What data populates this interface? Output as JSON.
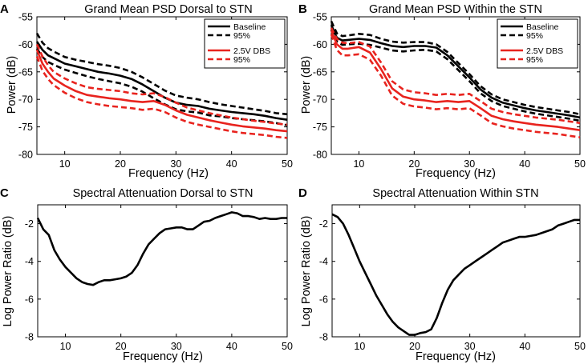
{
  "chart_data": [
    {
      "type": "line",
      "panel_label": "A",
      "title": "Grand Mean PSD Dorsal to STN",
      "xlabel": "Frequency (Hz)",
      "ylabel": "Power (dB)",
      "xlim": [
        5,
        50
      ],
      "ylim": [
        -80,
        -55
      ],
      "xticks": [
        10,
        20,
        30,
        40,
        50
      ],
      "yticks": [
        -80,
        -75,
        -70,
        -65,
        -60,
        -55
      ],
      "legend": {
        "position": "top-right",
        "entries": [
          {
            "label": "Baseline",
            "color": "#000000",
            "style": "solid"
          },
          {
            "label": "95%",
            "color": "#000000",
            "style": "dashed"
          },
          {
            "label": "2.5V DBS",
            "color": "#e8231e",
            "style": "solid"
          },
          {
            "label": "95%",
            "color": "#e8231e",
            "style": "dashed"
          }
        ]
      },
      "series": [
        {
          "name": "Baseline",
          "color": "#000000",
          "style": "solid",
          "x": [
            5,
            6,
            7,
            8,
            10,
            12,
            14,
            16,
            18,
            20,
            22,
            24,
            26,
            28,
            30,
            32,
            34,
            36,
            38,
            40,
            42,
            44,
            46,
            48,
            50
          ],
          "y": [
            -59.5,
            -61,
            -62,
            -62.5,
            -63.5,
            -64,
            -64.5,
            -65,
            -65.3,
            -65.7,
            -66.3,
            -67.3,
            -68.5,
            -69.7,
            -70.6,
            -71,
            -71.2,
            -71.7,
            -72,
            -72.3,
            -72.5,
            -72.7,
            -73,
            -73.4,
            -73.7
          ]
        },
        {
          "name": "Baseline 95% upper",
          "color": "#000000",
          "style": "dashed",
          "x": [
            5,
            6,
            7,
            8,
            10,
            12,
            14,
            16,
            18,
            20,
            22,
            24,
            26,
            28,
            30,
            32,
            34,
            36,
            38,
            40,
            42,
            44,
            46,
            48,
            50
          ],
          "y": [
            -58,
            -59.7,
            -60.7,
            -61.3,
            -62.3,
            -62.8,
            -63.2,
            -63.6,
            -63.9,
            -64.3,
            -65,
            -66,
            -67.2,
            -68.4,
            -69.3,
            -69.7,
            -70,
            -70.5,
            -70.9,
            -71.2,
            -71.5,
            -71.8,
            -72.1,
            -72.5,
            -72.7
          ]
        },
        {
          "name": "Baseline 95% lower",
          "color": "#000000",
          "style": "dashed",
          "x": [
            5,
            6,
            7,
            8,
            10,
            12,
            14,
            16,
            18,
            20,
            22,
            24,
            26,
            28,
            30,
            32,
            34,
            36,
            38,
            40,
            42,
            44,
            46,
            48,
            50
          ],
          "y": [
            -60.8,
            -62.3,
            -63.2,
            -63.7,
            -64.6,
            -65.2,
            -65.8,
            -66.3,
            -66.7,
            -67.1,
            -67.7,
            -68.6,
            -69.8,
            -70.9,
            -71.8,
            -72.2,
            -72.4,
            -72.9,
            -73.1,
            -73.4,
            -73.6,
            -73.8,
            -74,
            -74.3,
            -74.7
          ]
        },
        {
          "name": "2.5V DBS",
          "color": "#e8231e",
          "style": "solid",
          "x": [
            5,
            6,
            7,
            8,
            10,
            12,
            14,
            16,
            18,
            20,
            22,
            24,
            26,
            28,
            30,
            32,
            34,
            36,
            38,
            40,
            42,
            44,
            46,
            48,
            50
          ],
          "y": [
            -61,
            -63.5,
            -65,
            -66.2,
            -67.5,
            -68.5,
            -69.2,
            -69.5,
            -69.8,
            -70,
            -70.3,
            -70.5,
            -70.3,
            -71,
            -72,
            -72.8,
            -73.3,
            -73.8,
            -74.2,
            -74.6,
            -74.9,
            -75.1,
            -75.3,
            -75.6,
            -75.8
          ]
        },
        {
          "name": "2.5V DBS 95% upper",
          "color": "#e8231e",
          "style": "dashed",
          "x": [
            5,
            6,
            7,
            8,
            10,
            12,
            14,
            16,
            18,
            20,
            22,
            24,
            26,
            28,
            30,
            32,
            34,
            36,
            38,
            40,
            42,
            44,
            46,
            48,
            50
          ],
          "y": [
            -60,
            -62.2,
            -63.8,
            -65,
            -66.2,
            -67.1,
            -67.8,
            -68.1,
            -68.3,
            -68.5,
            -68.9,
            -69.1,
            -68.9,
            -69.6,
            -70.6,
            -71.5,
            -72,
            -72.5,
            -72.9,
            -73.3,
            -73.6,
            -73.9,
            -74.1,
            -74.4,
            -74.6
          ]
        },
        {
          "name": "2.5V DBS 95% lower",
          "color": "#e8231e",
          "style": "dashed",
          "x": [
            5,
            6,
            7,
            8,
            10,
            12,
            14,
            16,
            18,
            20,
            22,
            24,
            26,
            28,
            30,
            32,
            34,
            36,
            38,
            40,
            42,
            44,
            46,
            48,
            50
          ],
          "y": [
            -62.2,
            -64.8,
            -66.3,
            -67.4,
            -68.8,
            -69.8,
            -70.5,
            -70.9,
            -71.2,
            -71.4,
            -71.6,
            -71.9,
            -71.7,
            -72.3,
            -73.3,
            -74.1,
            -74.6,
            -75,
            -75.4,
            -75.8,
            -76.1,
            -76.3,
            -76.5,
            -76.8,
            -77
          ]
        }
      ]
    },
    {
      "type": "line",
      "panel_label": "B",
      "title": "Grand Mean PSD Within the STN",
      "xlabel": "Frequency (Hz)",
      "ylabel": "Power (dB)",
      "xlim": [
        5,
        50
      ],
      "ylim": [
        -80,
        -55
      ],
      "xticks": [
        10,
        20,
        30,
        40,
        50
      ],
      "yticks": [
        -80,
        -75,
        -70,
        -65,
        -60,
        -55
      ],
      "legend": {
        "position": "top-right",
        "entries": [
          {
            "label": "Baseline",
            "color": "#000000",
            "style": "solid"
          },
          {
            "label": "95%",
            "color": "#000000",
            "style": "dashed"
          },
          {
            "label": "2.5V DBS",
            "color": "#e8231e",
            "style": "solid"
          },
          {
            "label": "95%",
            "color": "#e8231e",
            "style": "dashed"
          }
        ]
      },
      "series": [
        {
          "name": "Baseline",
          "color": "#000000",
          "style": "solid",
          "x": [
            5,
            6,
            7,
            8,
            10,
            12,
            14,
            16,
            18,
            20,
            22,
            24,
            26,
            28,
            30,
            32,
            34,
            36,
            38,
            40,
            42,
            44,
            46,
            48,
            50
          ],
          "y": [
            -56.5,
            -58.8,
            -59.3,
            -59.2,
            -59,
            -59.2,
            -59.8,
            -60.3,
            -60.5,
            -60.3,
            -60.3,
            -60.6,
            -62,
            -64,
            -66,
            -68.2,
            -69.7,
            -70.6,
            -71.1,
            -71.6,
            -72,
            -72.3,
            -72.6,
            -72.9,
            -73.3
          ]
        },
        {
          "name": "Baseline 95% upper",
          "color": "#000000",
          "style": "dashed",
          "x": [
            5,
            6,
            7,
            8,
            10,
            12,
            14,
            16,
            18,
            20,
            22,
            24,
            26,
            28,
            30,
            32,
            34,
            36,
            38,
            40,
            42,
            44,
            46,
            48,
            50
          ],
          "y": [
            -55.8,
            -58,
            -58.5,
            -58.4,
            -58.1,
            -58.3,
            -59,
            -59.5,
            -59.7,
            -59.6,
            -59.6,
            -60,
            -61.4,
            -63.4,
            -65.4,
            -67.6,
            -69.1,
            -70,
            -70.5,
            -71,
            -71.4,
            -71.7,
            -72,
            -72.3,
            -72.7
          ]
        },
        {
          "name": "Baseline 95% lower",
          "color": "#000000",
          "style": "dashed",
          "x": [
            5,
            6,
            7,
            8,
            10,
            12,
            14,
            16,
            18,
            20,
            22,
            24,
            26,
            28,
            30,
            32,
            34,
            36,
            38,
            40,
            42,
            44,
            46,
            48,
            50
          ],
          "y": [
            -57.3,
            -59.5,
            -60.1,
            -60,
            -59.9,
            -60.1,
            -60.6,
            -61.1,
            -61.3,
            -61.1,
            -61,
            -61.3,
            -62.7,
            -64.7,
            -66.7,
            -68.9,
            -70.3,
            -71.2,
            -71.7,
            -72.2,
            -72.6,
            -72.9,
            -73.2,
            -73.5,
            -73.9
          ]
        },
        {
          "name": "2.5V DBS",
          "color": "#e8231e",
          "style": "solid",
          "x": [
            5,
            6,
            7,
            8,
            10,
            12,
            14,
            16,
            18,
            20,
            22,
            24,
            26,
            28,
            30,
            32,
            34,
            36,
            38,
            40,
            42,
            44,
            46,
            48,
            50
          ],
          "y": [
            -57.5,
            -60,
            -60.8,
            -60.8,
            -60.5,
            -61.5,
            -64.5,
            -68,
            -69.5,
            -70,
            -70.2,
            -70.5,
            -70.3,
            -70.5,
            -70.3,
            -71.6,
            -73,
            -73.6,
            -74,
            -74.3,
            -74.6,
            -74.8,
            -75,
            -75.3,
            -75.6
          ]
        },
        {
          "name": "2.5V DBS 95% upper",
          "color": "#e8231e",
          "style": "dashed",
          "x": [
            5,
            6,
            7,
            8,
            10,
            12,
            14,
            16,
            18,
            20,
            22,
            24,
            26,
            28,
            30,
            32,
            34,
            36,
            38,
            40,
            42,
            44,
            46,
            48,
            50
          ],
          "y": [
            -57,
            -59,
            -59.7,
            -59.8,
            -59.6,
            -60.4,
            -63.3,
            -66.7,
            -68.2,
            -68.7,
            -68.9,
            -69.2,
            -69,
            -69.2,
            -69,
            -70.3,
            -71.7,
            -72.3,
            -72.7,
            -73,
            -73.3,
            -73.5,
            -73.7,
            -74,
            -74.3
          ]
        },
        {
          "name": "2.5V DBS 95% lower",
          "color": "#e8231e",
          "style": "dashed",
          "x": [
            5,
            6,
            7,
            8,
            10,
            12,
            14,
            16,
            18,
            20,
            22,
            24,
            26,
            28,
            30,
            32,
            34,
            36,
            38,
            40,
            42,
            44,
            46,
            48,
            50
          ],
          "y": [
            -58.2,
            -61,
            -62,
            -62,
            -61.8,
            -62.8,
            -65.7,
            -69.3,
            -70.8,
            -71.3,
            -71.5,
            -71.8,
            -71.6,
            -71.8,
            -71.6,
            -72.9,
            -74.3,
            -74.9,
            -75.3,
            -75.6,
            -75.9,
            -76.1,
            -76.3,
            -76.6,
            -76.9
          ]
        }
      ]
    },
    {
      "type": "line",
      "panel_label": "C",
      "title": "Spectral Attenuation Dorsal to STN",
      "xlabel": "Frequency (Hz)",
      "ylabel": "Log Power Ratio (dB)",
      "xlim": [
        5,
        50
      ],
      "ylim": [
        -8,
        -1
      ],
      "xticks": [
        10,
        20,
        30,
        40,
        50
      ],
      "yticks": [
        -8,
        -6,
        -4,
        -2
      ],
      "series": [
        {
          "name": "Log Power Ratio",
          "color": "#000000",
          "style": "solid",
          "x": [
            5,
            5.5,
            6,
            7,
            8,
            9,
            10,
            11,
            12,
            13,
            14,
            15,
            16,
            17,
            18,
            19,
            20,
            21,
            22,
            23,
            24,
            25,
            26,
            27,
            28,
            29,
            30,
            31,
            32,
            33,
            34,
            35,
            36,
            37,
            38,
            39,
            40,
            41,
            42,
            43,
            44,
            45,
            46,
            47,
            48,
            49,
            50
          ],
          "y": [
            -1.7,
            -2.0,
            -2.3,
            -2.6,
            -3.4,
            -3.9,
            -4.3,
            -4.6,
            -4.9,
            -5.1,
            -5.2,
            -5.25,
            -5.1,
            -5.0,
            -5.0,
            -4.95,
            -4.9,
            -4.8,
            -4.6,
            -4.2,
            -3.6,
            -3.1,
            -2.8,
            -2.5,
            -2.3,
            -2.25,
            -2.2,
            -2.2,
            -2.3,
            -2.3,
            -2.1,
            -1.9,
            -1.85,
            -1.7,
            -1.6,
            -1.5,
            -1.4,
            -1.45,
            -1.6,
            -1.6,
            -1.65,
            -1.75,
            -1.7,
            -1.75,
            -1.75,
            -1.7,
            -1.7
          ]
        }
      ]
    },
    {
      "type": "line",
      "panel_label": "D",
      "title": "Spectral Attenuation Within STN",
      "xlabel": "Frequency (Hz)",
      "ylabel": "Log Power Ratio (dB)",
      "xlim": [
        5,
        50
      ],
      "ylim": [
        -8,
        -1
      ],
      "xticks": [
        10,
        20,
        30,
        40,
        50
      ],
      "yticks": [
        -8,
        -6,
        -4,
        -2
      ],
      "series": [
        {
          "name": "Log Power Ratio",
          "color": "#000000",
          "style": "solid",
          "x": [
            5,
            6,
            7,
            8,
            9,
            10,
            11,
            12,
            13,
            14,
            15,
            16,
            17,
            18,
            19,
            20,
            21,
            22,
            23,
            24,
            25,
            26,
            27,
            28,
            29,
            30,
            31,
            32,
            33,
            34,
            35,
            36,
            37,
            38,
            39,
            40,
            41,
            42,
            43,
            44,
            45,
            46,
            47,
            48,
            49,
            50
          ],
          "y": [
            -1.5,
            -1.65,
            -2.0,
            -2.6,
            -3.3,
            -4.0,
            -4.6,
            -5.2,
            -5.8,
            -6.3,
            -6.8,
            -7.2,
            -7.5,
            -7.7,
            -7.9,
            -7.9,
            -7.8,
            -7.75,
            -7.6,
            -7.0,
            -6.2,
            -5.5,
            -5.0,
            -4.7,
            -4.4,
            -4.2,
            -4.0,
            -3.8,
            -3.6,
            -3.4,
            -3.2,
            -3.0,
            -2.9,
            -2.8,
            -2.7,
            -2.7,
            -2.65,
            -2.6,
            -2.5,
            -2.4,
            -2.3,
            -2.1,
            -2.0,
            -1.9,
            -1.8,
            -1.8
          ]
        }
      ]
    }
  ]
}
